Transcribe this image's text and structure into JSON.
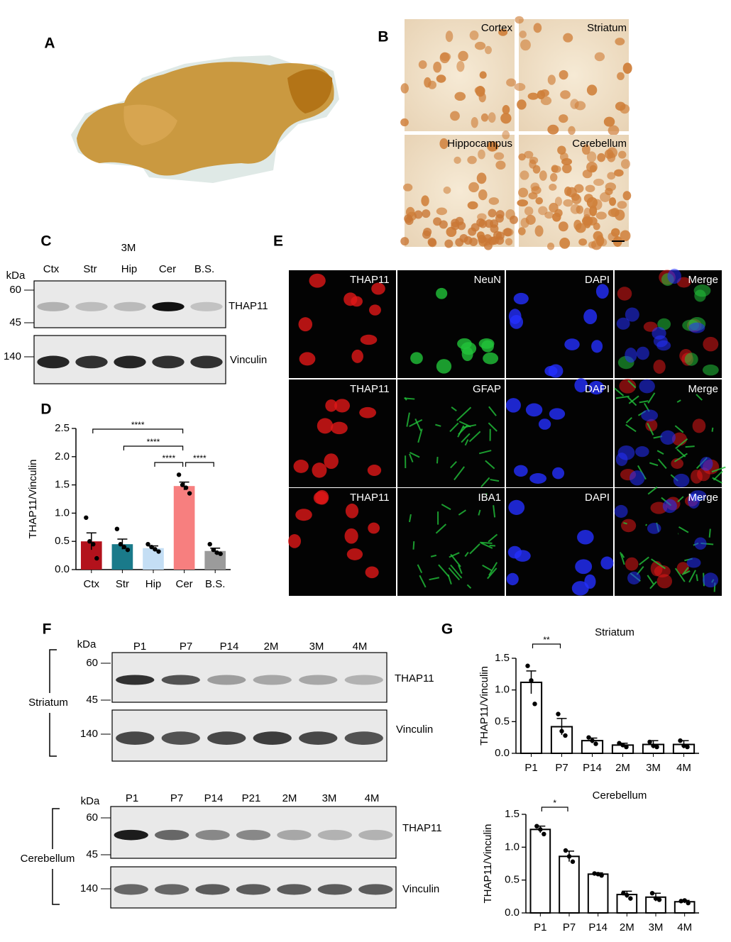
{
  "panel_labels": [
    "A",
    "B",
    "C",
    "D",
    "E",
    "F",
    "G"
  ],
  "panel_b": {
    "regions": [
      "Cortex",
      "Striatum",
      "Hippocampus",
      "Cerebellum"
    ]
  },
  "panel_c": {
    "condition": "3M",
    "kda": "kDa",
    "lanes": [
      "Ctx",
      "Str",
      "Hip",
      "Cer",
      "B.S."
    ],
    "markers": [
      "60",
      "45",
      "140"
    ],
    "bands": [
      "THAP11",
      "Vinculin"
    ]
  },
  "panel_e": {
    "rows": [
      [
        "THAP11",
        "NeuN",
        "DAPI",
        "Merge"
      ],
      [
        "THAP11",
        "GFAP",
        "DAPI",
        "Merge"
      ],
      [
        "THAP11",
        "IBA1",
        "DAPI",
        "Merge"
      ]
    ]
  },
  "panel_f": {
    "blots": [
      {
        "region": "Striatum",
        "kda": "kDa",
        "lanes": [
          "P1",
          "P7",
          "P14",
          "2M",
          "3M",
          "4M"
        ],
        "markers": [
          "60",
          "45",
          "140"
        ],
        "bands": [
          "THAP11",
          "Vinculin"
        ]
      },
      {
        "region": "Cerebellum",
        "kda": "kDa",
        "lanes": [
          "P1",
          "P7",
          "P14",
          "P21",
          "2M",
          "3M",
          "4M"
        ],
        "markers": [
          "60",
          "45",
          "140"
        ],
        "bands": [
          "THAP11",
          "Vinculin"
        ]
      }
    ]
  },
  "chart_data": [
    {
      "type": "bar",
      "y_label": "THAP11/Vinculin",
      "categories": [
        "Ctx",
        "Str",
        "Hip",
        "Cer",
        "B.S."
      ],
      "values": [
        0.5,
        0.45,
        0.38,
        1.48,
        0.33
      ],
      "errors": [
        0.15,
        0.09,
        0.04,
        0.07,
        0.05
      ],
      "points": [
        [
          0.92,
          0.5,
          0.45,
          0.2
        ],
        [
          0.72,
          0.45,
          0.4,
          0.35
        ],
        [
          0.45,
          0.4,
          0.36,
          0.32
        ],
        [
          1.68,
          1.5,
          1.45,
          1.35
        ],
        [
          0.45,
          0.35,
          0.3,
          0.28
        ]
      ],
      "colors": [
        "#b3121c",
        "#1a7a8a",
        "#c4def4",
        "#f77f7f",
        "#9b9b9b"
      ],
      "ylim": [
        0,
        2.5
      ],
      "yticks": [
        {
          "value": 0,
          "label": "0.0"
        },
        0.5,
        {
          "value": 1,
          "label": "1.0"
        },
        1.5,
        {
          "value": 2,
          "label": "2.0"
        },
        2.5
      ],
      "significance": [
        {
          "label": "****",
          "from": 0,
          "to": 3
        },
        {
          "label": "****",
          "from": 1,
          "to": 3
        },
        {
          "label": "****",
          "from": 2,
          "to": 3
        },
        {
          "label": "****",
          "from": 3,
          "to": 4
        }
      ]
    },
    {
      "type": "bar",
      "title": "Striatum",
      "y_label": "THAP11/Vinculin",
      "categories": [
        "P1",
        "P7",
        "P14",
        "2M",
        "3M",
        "4M"
      ],
      "values": [
        1.12,
        0.42,
        0.2,
        0.13,
        0.14,
        0.14
      ],
      "errors": [
        0.18,
        0.13,
        0.04,
        0.03,
        0.06,
        0.06
      ],
      "points": [
        [
          1.38,
          1.15,
          0.78
        ],
        [
          0.62,
          0.35,
          0.28
        ],
        [
          0.25,
          0.2,
          0.15
        ],
        [
          0.16,
          0.13,
          0.1
        ],
        [
          0.18,
          0.12,
          0.1
        ],
        [
          0.2,
          0.12,
          0.1
        ]
      ],
      "color": "#ffffff",
      "ylim": [
        0,
        1.5
      ],
      "yticks": [
        {
          "value": 0,
          "label": "0.0"
        },
        0.5,
        {
          "value": 1,
          "label": "1.0"
        },
        1.5
      ],
      "significance": [
        {
          "label": "**",
          "from": 0,
          "to": 1
        }
      ]
    },
    {
      "type": "bar",
      "title": "Cerebellum",
      "y_label": "THAP11/Vinculin",
      "categories": [
        "P1",
        "P7",
        "P14",
        "2M",
        "3M",
        "4M"
      ],
      "values": [
        1.27,
        0.86,
        0.59,
        0.28,
        0.24,
        0.17
      ],
      "errors": [
        0.05,
        0.08,
        0.02,
        0.05,
        0.06,
        0.02
      ],
      "points": [
        [
          1.32,
          1.27,
          1.2
        ],
        [
          0.95,
          0.86,
          0.78
        ],
        [
          0.6,
          0.59,
          0.57
        ],
        [
          0.3,
          0.27,
          0.22
        ],
        [
          0.3,
          0.22,
          0.2
        ],
        [
          0.18,
          0.19,
          0.15
        ]
      ],
      "color": "#ffffff",
      "ylim": [
        0,
        1.5
      ],
      "yticks": [
        {
          "value": 0,
          "label": "0.0"
        },
        0.5,
        {
          "value": 1,
          "label": "1.0"
        },
        1.5
      ],
      "significance": [
        {
          "label": "*",
          "from": 0,
          "to": 1
        }
      ]
    }
  ]
}
